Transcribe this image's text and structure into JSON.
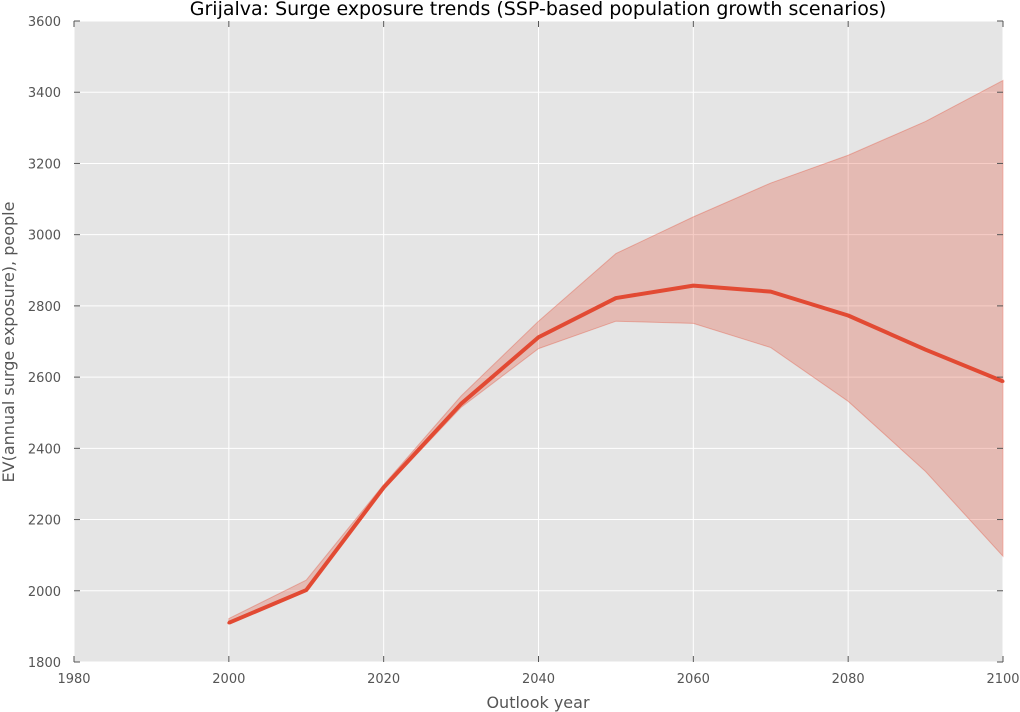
{
  "chart_data": {
    "type": "area",
    "title": "Grijalva: Surge exposure trends (SSP-based population growth scenarios)",
    "xlabel": "Outlook year",
    "ylabel": "EV(annual surge exposure), people",
    "xlim": [
      1980,
      2100
    ],
    "ylim": [
      1800,
      3600
    ],
    "xticks": [
      1980,
      2000,
      2020,
      2040,
      2060,
      2080,
      2100
    ],
    "yticks": [
      1800,
      2000,
      2200,
      2400,
      2600,
      2800,
      3000,
      3200,
      3400,
      3600
    ],
    "grid": true,
    "x": [
      2000,
      2010,
      2020,
      2030,
      2040,
      2050,
      2060,
      2070,
      2080,
      2090,
      2100
    ],
    "series": [
      {
        "values": [
          1910,
          2002,
          2290,
          2525,
          2712,
          2822,
          2857,
          2840,
          2773,
          2677,
          2588
        ],
        "lower": [
          1908,
          1998,
          2285,
          2515,
          2680,
          2757,
          2751,
          2683,
          2532,
          2335,
          2097
        ],
        "upper": [
          1922,
          2030,
          2298,
          2547,
          2757,
          2947,
          3050,
          3145,
          3223,
          3318,
          3433
        ],
        "color": "#e24a33",
        "band_color": "#e24a33"
      }
    ],
    "plot_background": "#e5e5e5",
    "grid_color": "#ffffff"
  }
}
